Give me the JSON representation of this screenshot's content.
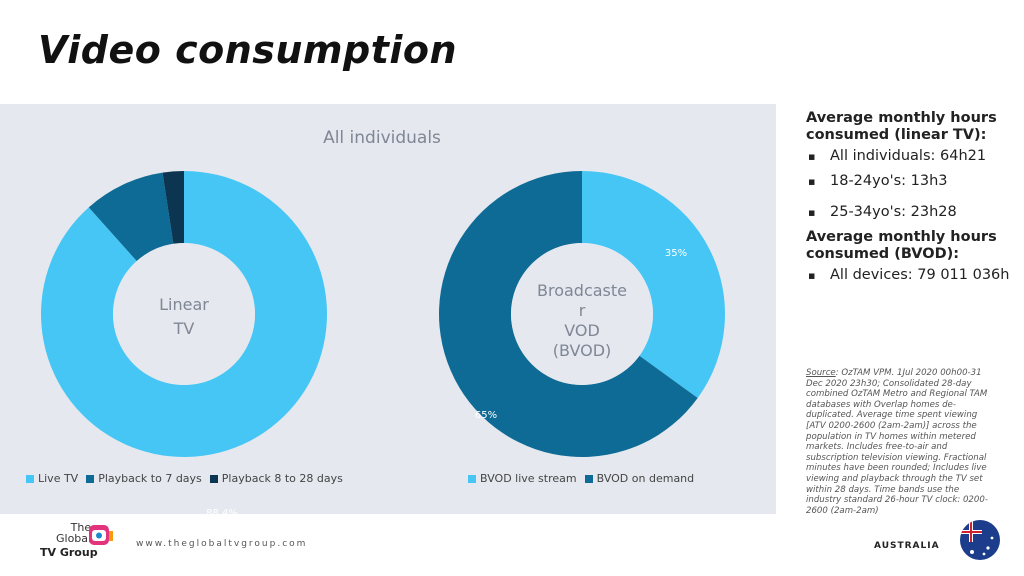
{
  "slide": {
    "title": "Video consumption",
    "panel_title": "All individuals",
    "website": "www.theglobaltvgroup.com",
    "logo": {
      "line1": "The",
      "line2": "Global",
      "line3": "TV Group"
    },
    "country": "AUSTRALIA"
  },
  "sidebar": {
    "linear_heading": "Average monthly hours consumed (linear TV):",
    "linear_items": [
      "All individuals: 64h21",
      "18-24yo's: 13h3",
      "25-34yo's: 23h28"
    ],
    "bvod_heading": "Average monthly hours consumed (BVOD):",
    "bvod_items": [
      "All devices: 79 011 036h"
    ]
  },
  "source": {
    "label": "Source",
    "text": ": OzTAM VPM.  1Jul 2020 00h00-31 Dec 2020 23h30; Consolidated 28-day combined OzTAM Metro and Regional TAM databases with Overlap homes de-duplicated. Average time spent viewing [ATV 0200-2600 (2am-2am)] across the population in TV homes within metered markets. Includes free-to-air and subscription television viewing. Fractional minutes have been rounded; Includes live viewing and playback through the TV set within 28 days. Time bands use the industry standard 26-hour TV clock: 0200-2600 (2am-2am)"
  },
  "colors": {
    "light": "#45c6f5",
    "mid": "#0e6b96",
    "dark": "#0b3550",
    "panel": "#e5e8ee"
  },
  "chart_data": [
    {
      "type": "pie",
      "center_label": "Linear TV",
      "categories": [
        "Live TV",
        "Playback to 7 days",
        "Playback 8 to 28 days"
      ],
      "values": [
        88.4,
        9.2,
        2.4
      ],
      "data_labels": [
        "88.4%",
        "9.2%",
        "2.4%"
      ],
      "colors": [
        "#45c6f5",
        "#0e6b96",
        "#0b3550"
      ],
      "legend": "bottom"
    },
    {
      "type": "pie",
      "center_label": "Broadcaster VOD (BVOD)",
      "categories": [
        "BVOD live stream",
        "BVOD on demand"
      ],
      "values": [
        35,
        65
      ],
      "data_labels": [
        "35%",
        "65%"
      ],
      "colors": [
        "#45c6f5",
        "#0e6b96"
      ],
      "legend": "bottom"
    }
  ]
}
